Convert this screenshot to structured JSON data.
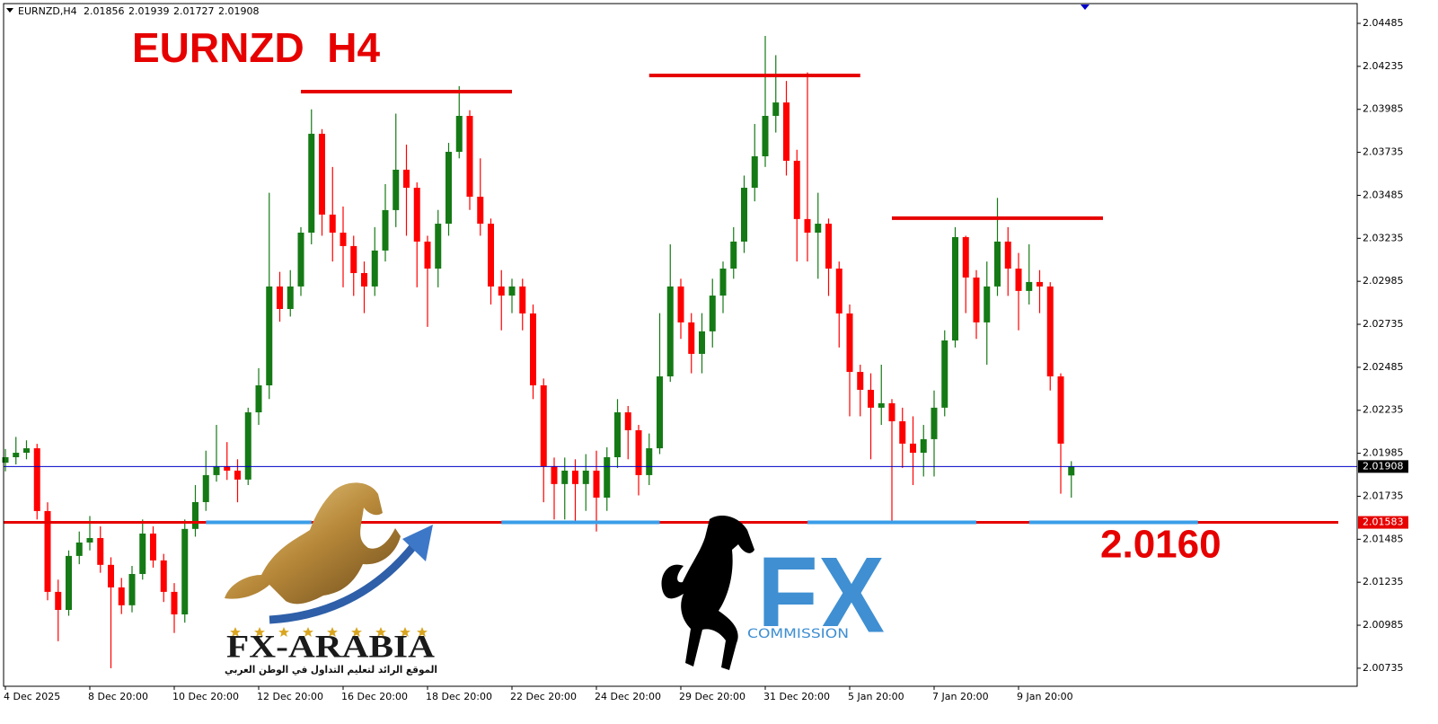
{
  "chart_data": {
    "type": "candlestick",
    "title": "EURNZD  H4",
    "header": {
      "symbol": "EURNZD,H4",
      "ohlc": [
        2.01856,
        2.01939,
        2.01727,
        2.01908
      ]
    },
    "open": [
      2.0193,
      2.01962,
      2.01988,
      2.02014,
      2.01649,
      2.01179,
      2.01074,
      2.01388,
      2.01466,
      2.01492,
      2.01336,
      2.01205,
      2.01101,
      2.01283,
      2.01518,
      2.01362,
      2.01179,
      2.01048,
      2.01545,
      2.01701,
      2.01858,
      2.0191,
      2.01884,
      2.01832,
      2.02223,
      2.0238,
      2.02955,
      2.02824,
      2.02955,
      2.03268,
      2.03843,
      2.03373,
      2.03268,
      2.0319,
      2.03033,
      2.02955,
      2.03164,
      2.03399,
      2.03634,
      2.03529,
      2.03216,
      2.03059,
      2.0332,
      2.03738,
      2.03947,
      2.03477,
      2.0332,
      2.02955,
      2.02902,
      2.02955,
      2.02798,
      2.0238,
      2.0191,
      2.01806,
      2.01884,
      2.01806,
      2.01884,
      2.01727,
      2.01962,
      2.02223,
      2.02119,
      2.01858,
      2.02014,
      2.02432,
      2.02955,
      2.02746,
      2.02563,
      2.02694,
      2.02902,
      2.03059,
      2.03216,
      2.03529,
      2.03712,
      2.03947,
      2.04025,
      2.03686,
      2.03347,
      2.03268,
      2.0332,
      2.03059,
      2.02798,
      2.02458,
      2.02354,
      2.0225,
      2.02276,
      2.02171,
      2.02041,
      2.01988,
      2.02067,
      2.0225,
      2.02641,
      2.03242,
      2.03007,
      2.02746,
      2.02955,
      2.03216,
      2.03059,
      2.02929,
      2.02981,
      2.02955,
      2.02432,
      2.01856
    ],
    "high": [
      2.0201,
      2.0208,
      2.0206,
      2.0204,
      2.017,
      2.0125,
      2.0142,
      2.0153,
      2.0162,
      2.0156,
      2.0138,
      2.0126,
      2.0133,
      2.016,
      2.0156,
      2.014,
      2.0123,
      2.016,
      2.018,
      2.02,
      2.0215,
      2.0205,
      2.0195,
      2.0225,
      2.0248,
      2.035,
      2.0304,
      2.0305,
      2.033,
      2.03985,
      2.0387,
      2.0365,
      2.0342,
      2.0325,
      2.031,
      2.033,
      2.0355,
      2.0396,
      2.0378,
      2.0356,
      2.0325,
      2.034,
      2.0379,
      2.0412,
      2.0398,
      2.037,
      2.0335,
      2.0305,
      2.03,
      2.03,
      2.0285,
      2.0242,
      2.0196,
      2.0196,
      2.0195,
      2.0198,
      2.02,
      2.0202,
      2.023,
      2.0226,
      2.0215,
      2.021,
      2.028,
      2.032,
      2.03,
      2.028,
      2.028,
      2.03,
      2.031,
      2.033,
      2.036,
      2.039,
      2.04412,
      2.043,
      2.0415,
      2.0375,
      2.042,
      2.035,
      2.0335,
      2.031,
      2.0285,
      2.025,
      2.0245,
      2.025,
      2.023,
      2.0225,
      2.022,
      2.0215,
      2.0235,
      2.027,
      2.033,
      2.0325,
      2.0305,
      2.031,
      2.0347,
      2.033,
      2.0315,
      2.032,
      2.0305,
      2.0298,
      2.0245,
      2.01939
    ],
    "low": [
      2.0188,
      2.0192,
      2.0195,
      2.016,
      2.0113,
      2.00892,
      2.0104,
      2.0134,
      2.0142,
      2.0129,
      2.00735,
      2.0105,
      2.0106,
      2.0125,
      2.0132,
      2.0112,
      2.0094,
      2.01,
      2.015,
      2.0165,
      2.0182,
      2.0183,
      2.017,
      2.018,
      2.0215,
      2.023,
      2.0275,
      2.0278,
      2.029,
      2.032,
      2.0325,
      2.031,
      2.0295,
      2.029,
      2.028,
      2.029,
      2.031,
      2.033,
      2.0325,
      2.0295,
      2.0272,
      2.0295,
      2.0325,
      2.037,
      2.034,
      2.0325,
      2.0285,
      2.027,
      2.028,
      2.027,
      2.023,
      2.017,
      2.016,
      2.016,
      2.0158,
      2.0165,
      2.0153,
      2.0165,
      2.019,
      2.0195,
      2.0174,
      2.018,
      2.0198,
      2.024,
      2.0265,
      2.0245,
      2.0245,
      2.026,
      2.028,
      2.03,
      2.0315,
      2.0345,
      2.0365,
      2.0385,
      2.036,
      2.031,
      2.031,
      2.03,
      2.029,
      2.026,
      2.022,
      2.022,
      2.0195,
      2.0215,
      2.01583,
      2.019,
      2.018,
      2.0185,
      2.0185,
      2.022,
      2.026,
      2.028,
      2.0265,
      2.025,
      2.029,
      2.029,
      2.027,
      2.0285,
      2.028,
      2.0235,
      2.0175,
      2.01727
    ],
    "close": [
      2.01962,
      2.01988,
      2.02014,
      2.01649,
      2.01179,
      2.01074,
      2.01388,
      2.01466,
      2.01492,
      2.01336,
      2.01205,
      2.01101,
      2.01283,
      2.01518,
      2.01362,
      2.01179,
      2.01048,
      2.01545,
      2.01701,
      2.01858,
      2.0191,
      2.01884,
      2.01832,
      2.02223,
      2.0238,
      2.02955,
      2.02824,
      2.02955,
      2.03268,
      2.03843,
      2.03373,
      2.03268,
      2.0319,
      2.03033,
      2.02955,
      2.03164,
      2.03399,
      2.03634,
      2.03529,
      2.03216,
      2.03059,
      2.0332,
      2.03738,
      2.03947,
      2.03477,
      2.0332,
      2.02955,
      2.02902,
      2.02955,
      2.02798,
      2.0238,
      2.0191,
      2.01806,
      2.01884,
      2.01806,
      2.01884,
      2.01727,
      2.01962,
      2.02223,
      2.02119,
      2.01858,
      2.02014,
      2.02432,
      2.02955,
      2.02746,
      2.02563,
      2.02694,
      2.02902,
      2.03059,
      2.03216,
      2.03529,
      2.03712,
      2.03947,
      2.04025,
      2.03686,
      2.03347,
      2.03268,
      2.0332,
      2.03059,
      2.02798,
      2.02458,
      2.02354,
      2.0225,
      2.02276,
      2.02171,
      2.02041,
      2.01988,
      2.02067,
      2.0225,
      2.02641,
      2.03242,
      2.03007,
      2.02746,
      2.02955,
      2.03216,
      2.03059,
      2.02929,
      2.02981,
      2.02955,
      2.02432,
      2.02041,
      2.01908
    ],
    "up_color": "#157a15",
    "down_color": "#ff0000",
    "xticks": [
      {
        "value": 0,
        "label": "4 Dec 2025"
      },
      {
        "value": 8,
        "label": "8 Dec 20:00"
      },
      {
        "value": 16,
        "label": "10 Dec 20:00"
      },
      {
        "value": 24,
        "label": "12 Dec 20:00"
      },
      {
        "value": 32,
        "label": "16 Dec 20:00"
      },
      {
        "value": 40,
        "label": "18 Dec 20:00"
      },
      {
        "value": 48,
        "label": "22 Dec 20:00"
      },
      {
        "value": 56,
        "label": "24 Dec 20:00"
      },
      {
        "value": 64,
        "label": "29 Dec 20:00"
      },
      {
        "value": 72,
        "label": "31 Dec 20:00"
      },
      {
        "value": 80,
        "label": "5 Jan 20:00"
      },
      {
        "value": 88,
        "label": "7 Jan 20:00"
      },
      {
        "value": 96,
        "label": "9 Jan 20:00"
      }
    ],
    "ylim": [
      2.0063,
      2.046
    ],
    "yticks": [
      2.00735,
      2.00985,
      2.01235,
      2.01485,
      2.01735,
      2.01985,
      2.02235,
      2.02485,
      2.02735,
      2.02985,
      2.03235,
      2.03485,
      2.03735,
      2.03985,
      2.04235,
      2.04485
    ],
    "current_price": {
      "value": 2.01908,
      "color": "#0000c8"
    },
    "support": {
      "value": 2.01583,
      "label": "2.0160",
      "color": "#e60000"
    },
    "resistance_lines": [
      {
        "price": 2.04088,
        "from": 28,
        "to": 48
      },
      {
        "price": 2.04182,
        "from": 61,
        "to": 81
      },
      {
        "price": 2.03352,
        "from": 84,
        "to": 104
      }
    ],
    "support_segments": [
      [
        19,
        29
      ],
      [
        47,
        62
      ],
      [
        76,
        92
      ],
      [
        97,
        113
      ]
    ],
    "support_segment_color": "#3a9ee8"
  },
  "logos": {
    "fx_arabia": {
      "name": "FX-ARABIA",
      "tagline": "الموقع الرائد لتعليم التداول في الوطن العربي"
    },
    "fx_commission": {
      "mark": "FX",
      "name": "COMMISSION"
    }
  }
}
